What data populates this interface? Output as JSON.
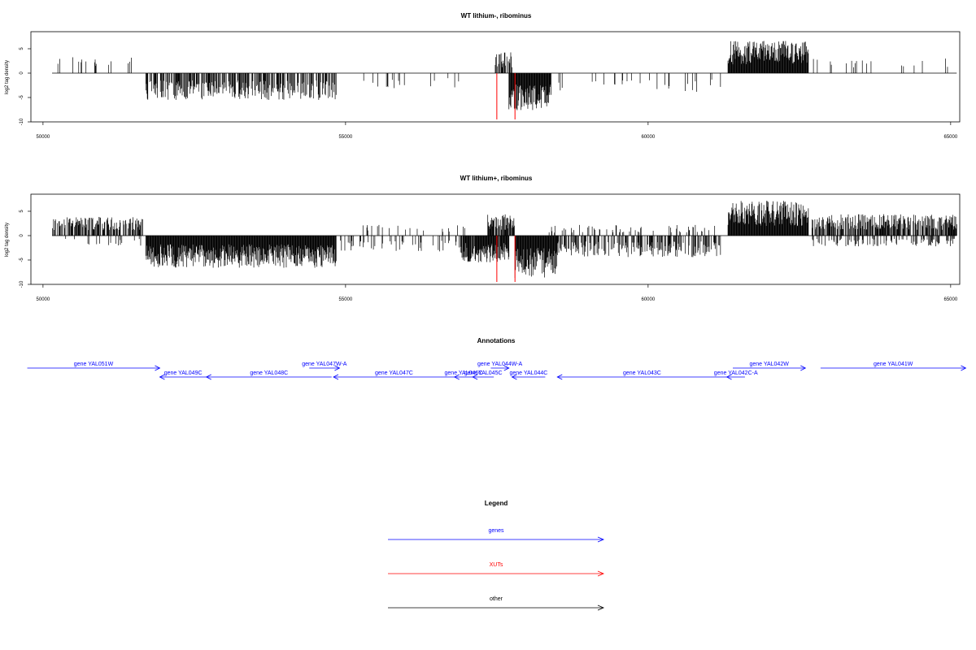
{
  "chart_data": [
    {
      "type": "bar",
      "title": "WT lithium-, ribominus",
      "xlabel": "",
      "ylabel": "log2 tag density",
      "xlim": [
        49800,
        65150
      ],
      "ylim": [
        -10,
        8.5
      ],
      "x_ticks": [
        "50000",
        "55000",
        "60000",
        "65000"
      ],
      "y_ticks": [
        "-10",
        "-5",
        "0",
        "5"
      ],
      "grid": false,
      "baseline": [
        50150,
        65100
      ],
      "series": [
        {
          "strand": "plus",
          "regions": [
            {
              "from": 50150,
              "to": 51650,
              "density": 0.07,
              "amp": 3
            },
            {
              "from": 57450,
              "to": 57770,
              "density": 0.5,
              "amp": 4
            },
            {
              "from": 61320,
              "to": 62650,
              "density": 1.0,
              "amp": 6
            },
            {
              "from": 62700,
              "to": 65100,
              "density": 0.06,
              "amp": 3
            }
          ]
        },
        {
          "strand": "minus",
          "regions": [
            {
              "from": 51700,
              "to": 54850,
              "density": 0.55,
              "amp": -5
            },
            {
              "from": 55300,
              "to": 56950,
              "density": 0.06,
              "amp": -3
            },
            {
              "from": 57700,
              "to": 58400,
              "density": 1.0,
              "amp": -7
            },
            {
              "from": 58500,
              "to": 61200,
              "density": 0.08,
              "amp": -3.5
            }
          ]
        }
      ],
      "markers": [
        {
          "x": 57500,
          "y": -9.5,
          "color": "#ff0000"
        },
        {
          "x": 57800,
          "y": -9.5,
          "color": "#ff0000"
        }
      ]
    },
    {
      "type": "bar",
      "title": "WT lithium+, ribominus",
      "xlabel": "",
      "ylabel": "log2 tag density",
      "xlim": [
        49800,
        65150
      ],
      "ylim": [
        -10,
        8.5
      ],
      "x_ticks": [
        "50000",
        "55000",
        "60000",
        "65000"
      ],
      "y_ticks": [
        "-10",
        "-5",
        "0",
        "5"
      ],
      "grid": false,
      "baseline": [
        50150,
        65100
      ],
      "series": [
        {
          "strand": "plus",
          "regions": [
            {
              "from": 50150,
              "to": 51650,
              "density": 0.6,
              "amp": 3.5
            },
            {
              "from": 55200,
              "to": 57000,
              "density": 0.1,
              "amp": 2
            },
            {
              "from": 57350,
              "to": 57800,
              "density": 0.8,
              "amp": 4
            },
            {
              "from": 58300,
              "to": 61200,
              "density": 0.15,
              "amp": 2
            },
            {
              "from": 61320,
              "to": 62650,
              "density": 1.0,
              "amp": 6.5
            },
            {
              "from": 62700,
              "to": 65100,
              "density": 0.7,
              "amp": 4
            }
          ]
        },
        {
          "strand": "minus",
          "regions": [
            {
              "from": 50150,
              "to": 51650,
              "density": 0.08,
              "amp": -2
            },
            {
              "from": 51700,
              "to": 54850,
              "density": 1.0,
              "amp": -6
            },
            {
              "from": 54900,
              "to": 56900,
              "density": 0.15,
              "amp": -3
            },
            {
              "from": 56900,
              "to": 57700,
              "density": 0.9,
              "amp": -5
            },
            {
              "from": 57800,
              "to": 58500,
              "density": 1.0,
              "amp": -8
            },
            {
              "from": 58500,
              "to": 61200,
              "density": 0.5,
              "amp": -4
            },
            {
              "from": 62700,
              "to": 65100,
              "density": 0.3,
              "amp": -2
            }
          ]
        }
      ],
      "markers": [
        {
          "x": 57500,
          "y": -9.5,
          "color": "#ff0000"
        },
        {
          "x": 57800,
          "y": -9.5,
          "color": "#ff0000"
        }
      ]
    }
  ],
  "annotations": {
    "title": "Annotations",
    "xlim": [
      49800,
      65150
    ],
    "color": "#0000ff",
    "genes": [
      {
        "label": "gene YAL051W",
        "from": 49740,
        "to": 51930,
        "strand": "+",
        "lane": 0
      },
      {
        "label": "gene YAL049C",
        "from": 51930,
        "to": 52700,
        "strand": "-",
        "lane": 1
      },
      {
        "label": "gene YAL048C",
        "from": 52700,
        "to": 54770,
        "strand": "-",
        "lane": 1
      },
      {
        "label": "gene YAL047W-A",
        "from": 54400,
        "to": 54900,
        "strand": "+",
        "lane": 0
      },
      {
        "label": "gene YAL047C",
        "from": 54800,
        "to": 56800,
        "strand": "-",
        "lane": 1
      },
      {
        "label": "gene YAL046C",
        "from": 56800,
        "to": 57100,
        "strand": "-",
        "lane": 1
      },
      {
        "label": "gene YAL045C",
        "from": 57100,
        "to": 57450,
        "strand": "-",
        "lane": 1
      },
      {
        "label": "gene YAL044W-A",
        "from": 57400,
        "to": 57700,
        "strand": "+",
        "lane": 0
      },
      {
        "label": "gene YAL044C",
        "from": 57750,
        "to": 58300,
        "strand": "-",
        "lane": 1
      },
      {
        "label": "gene YAL043C",
        "from": 58500,
        "to": 61300,
        "strand": "-",
        "lane": 1
      },
      {
        "label": "gene YAL042C-A",
        "from": 61300,
        "to": 61600,
        "strand": "-",
        "lane": 1
      },
      {
        "label": "gene YAL042W",
        "from": 61400,
        "to": 62600,
        "strand": "+",
        "lane": 0
      },
      {
        "label": "gene YAL041W",
        "from": 62850,
        "to": 65250,
        "strand": "+",
        "lane": 0
      }
    ]
  },
  "legend": {
    "title": "Legend",
    "items": [
      {
        "label": "genes",
        "color": "#0000ff"
      },
      {
        "label": "XUTs",
        "color": "#ff0000"
      },
      {
        "label": "other",
        "color": "#000000"
      }
    ]
  }
}
